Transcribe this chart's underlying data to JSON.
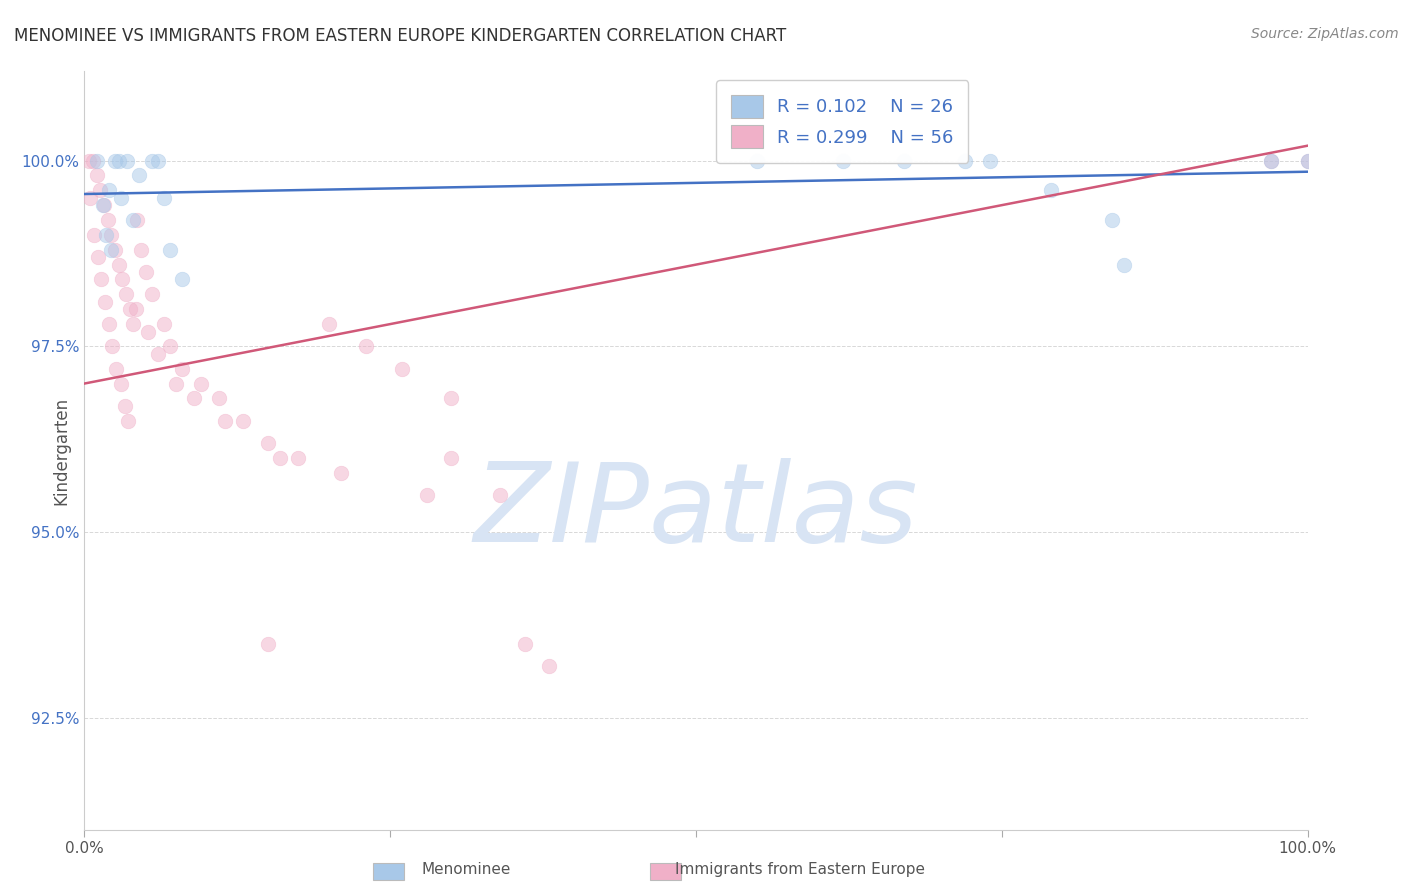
{
  "title": "MENOMINEE VS IMMIGRANTS FROM EASTERN EUROPE KINDERGARTEN CORRELATION CHART",
  "source": "Source: ZipAtlas.com",
  "ylabel": "Kindergarten",
  "y_tick_labels": [
    "92.5%",
    "95.0%",
    "97.5%",
    "100.0%"
  ],
  "y_tick_values": [
    92.5,
    95.0,
    97.5,
    100.0
  ],
  "xlim": [
    0.0,
    100.0
  ],
  "ylim": [
    91.0,
    101.2
  ],
  "blue_color": "#a8c8e8",
  "pink_color": "#f0b0c8",
  "blue_line_color": "#4472c4",
  "pink_line_color": "#d05878",
  "legend_R_blue": "R = 0.102",
  "legend_N_blue": "N = 26",
  "legend_R_pink": "R = 0.299",
  "legend_N_pink": "N = 56",
  "watermark_text": "ZIPatlas",
  "watermark_color": "#d8e4f4",
  "background_color": "#ffffff",
  "blue_scatter_x": [
    1.0,
    2.5,
    2.8,
    3.5,
    4.5,
    5.5,
    6.0,
    2.0,
    1.5,
    4.0,
    3.0,
    1.8,
    2.2,
    62.0,
    72.0,
    79.0,
    84.0,
    85.0,
    97.0,
    100.0,
    55.0,
    67.0,
    74.0,
    6.5,
    7.0,
    8.0
  ],
  "blue_scatter_y": [
    100.0,
    100.0,
    100.0,
    100.0,
    99.8,
    100.0,
    100.0,
    99.6,
    99.4,
    99.2,
    99.5,
    99.0,
    98.8,
    100.0,
    100.0,
    99.6,
    99.2,
    98.6,
    100.0,
    100.0,
    100.0,
    100.0,
    100.0,
    99.5,
    98.8,
    98.4
  ],
  "pink_scatter_x": [
    0.4,
    0.7,
    1.0,
    1.3,
    1.6,
    1.9,
    2.2,
    2.5,
    2.8,
    3.1,
    3.4,
    3.7,
    4.0,
    4.3,
    4.6,
    5.0,
    5.5,
    6.5,
    7.0,
    8.0,
    9.5,
    11.0,
    13.0,
    15.0,
    17.5,
    20.0,
    23.0,
    26.0,
    30.0,
    36.0,
    0.5,
    0.8,
    1.1,
    1.4,
    1.7,
    2.0,
    2.3,
    2.6,
    3.0,
    3.3,
    3.6,
    4.2,
    5.2,
    6.0,
    7.5,
    9.0,
    11.5,
    16.0,
    21.0,
    28.0,
    38.0,
    97.0,
    100.0,
    34.0,
    30.0,
    15.0
  ],
  "pink_scatter_y": [
    100.0,
    100.0,
    99.8,
    99.6,
    99.4,
    99.2,
    99.0,
    98.8,
    98.6,
    98.4,
    98.2,
    98.0,
    97.8,
    99.2,
    98.8,
    98.5,
    98.2,
    97.8,
    97.5,
    97.2,
    97.0,
    96.8,
    96.5,
    96.2,
    96.0,
    97.8,
    97.5,
    97.2,
    96.8,
    93.5,
    99.5,
    99.0,
    98.7,
    98.4,
    98.1,
    97.8,
    97.5,
    97.2,
    97.0,
    96.7,
    96.5,
    98.0,
    97.7,
    97.4,
    97.0,
    96.8,
    96.5,
    96.0,
    95.8,
    95.5,
    93.2,
    100.0,
    100.0,
    95.5,
    96.0,
    93.5
  ],
  "blue_line_x": [
    0.0,
    100.0
  ],
  "blue_line_y": [
    99.55,
    99.85
  ],
  "pink_line_x": [
    0.0,
    100.0
  ],
  "pink_line_y": [
    97.0,
    100.2
  ],
  "marker_size": 110,
  "marker_alpha": 0.5,
  "line_width": 1.8,
  "grid_color": "#d8d8d8",
  "title_fontsize": 12,
  "tick_fontsize": 11,
  "source_fontsize": 10,
  "legend_fontsize": 13
}
